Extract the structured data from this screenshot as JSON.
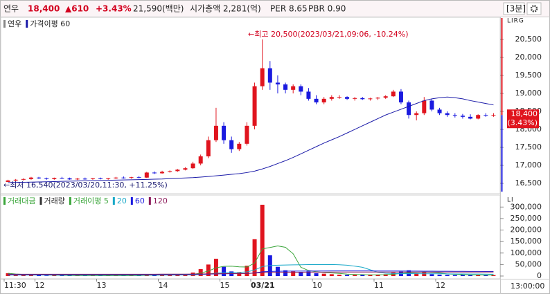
{
  "header": {
    "name": "연우",
    "price": "18,400",
    "change": "▲610",
    "change_rate": "+3.43%",
    "trade_value": "21,590(백만)",
    "market_cap": "시가총액 2,281(억)",
    "per": "PER 8.65",
    "pbr": "PBR 0.90",
    "interval": "[3분]"
  },
  "chart_data": [
    {
      "type": "candlestick",
      "axis_tag": "LIRG",
      "categories": [
        "11:30",
        null,
        null,
        null,
        "12",
        null,
        null,
        null,
        null,
        null,
        null,
        null,
        "13",
        null,
        null,
        null,
        null,
        null,
        null,
        null,
        "14",
        null,
        null,
        null,
        null,
        null,
        null,
        null,
        "15",
        null,
        null,
        null,
        "03/21",
        null,
        null,
        null,
        null,
        null,
        null,
        null,
        "10",
        null,
        null,
        null,
        null,
        null,
        null,
        null,
        "11",
        null,
        null,
        null,
        null,
        null,
        null,
        null,
        "12",
        null,
        null,
        null,
        null,
        null,
        null,
        null
      ],
      "series": [
        {
          "name": "연우",
          "color": "#888888",
          "up_color": "#e0141e",
          "down_color": "#1a1adf",
          "open": [
            16540,
            16580,
            16600,
            16620,
            16660,
            16640,
            16620,
            16650,
            16640,
            16610,
            16630,
            16620,
            16640,
            16620,
            16640,
            16660,
            16650,
            16670,
            16660,
            16800,
            16780,
            16820,
            16840,
            16880,
            16920,
            17050,
            17250,
            17700,
            18100,
            17700,
            17450,
            17600,
            18100,
            19200,
            19700,
            19300,
            19250,
            19100,
            19200,
            19050,
            18850,
            18750,
            18850,
            18900,
            18900,
            18850,
            18870,
            18840,
            18860,
            18880,
            18920,
            19050,
            18750,
            18400,
            18450,
            18800,
            18550,
            18450,
            18400,
            18380,
            18350,
            18300,
            18400,
            18380
          ],
          "high": [
            16600,
            16620,
            16640,
            16680,
            16680,
            16660,
            16660,
            16680,
            16660,
            16650,
            16660,
            16650,
            16660,
            16650,
            16680,
            16690,
            16680,
            16700,
            16820,
            16830,
            16850,
            16860,
            16900,
            16950,
            17100,
            17300,
            17800,
            18600,
            18200,
            17800,
            17650,
            18200,
            19300,
            20500,
            19900,
            19500,
            19300,
            19250,
            19250,
            19150,
            18950,
            18900,
            18950,
            18950,
            18920,
            18900,
            18900,
            18880,
            18900,
            18950,
            19100,
            19120,
            18800,
            18500,
            18900,
            18850,
            18600,
            18500,
            18450,
            18430,
            18420,
            18420,
            18450,
            18450
          ],
          "low": [
            16540,
            16560,
            16580,
            16600,
            16620,
            16600,
            16600,
            16620,
            16600,
            16590,
            16600,
            16600,
            16610,
            16600,
            16620,
            16630,
            16630,
            16640,
            16650,
            16760,
            16770,
            16800,
            16820,
            16860,
            16900,
            17000,
            17200,
            17650,
            17600,
            17350,
            17400,
            17550,
            18000,
            19100,
            19100,
            19000,
            19000,
            19000,
            18950,
            18800,
            18700,
            18700,
            18800,
            18850,
            18820,
            18800,
            18820,
            18800,
            18820,
            18850,
            18900,
            18700,
            18300,
            18250,
            18400,
            18500,
            18400,
            18350,
            18330,
            18300,
            18280,
            18280,
            18350,
            18350
          ],
          "close": [
            16580,
            16600,
            16620,
            16660,
            16640,
            16620,
            16650,
            16640,
            16610,
            16630,
            16620,
            16640,
            16620,
            16640,
            16660,
            16650,
            16670,
            16660,
            16800,
            16780,
            16820,
            16840,
            16880,
            16920,
            17050,
            17250,
            17700,
            18100,
            17700,
            17450,
            17600,
            18100,
            19200,
            19700,
            19300,
            19250,
            19100,
            19200,
            19050,
            18850,
            18750,
            18850,
            18900,
            18900,
            18850,
            18870,
            18840,
            18860,
            18880,
            18920,
            19050,
            18750,
            18400,
            18450,
            18800,
            18550,
            18450,
            18400,
            18380,
            18350,
            18300,
            18400,
            18380,
            18400
          ]
        },
        {
          "name": "가격이평 60",
          "color": "#1a1aa8",
          "values": [
            16520,
            16525,
            16530,
            16535,
            16540,
            16545,
            16550,
            16555,
            16560,
            16565,
            16570,
            16575,
            16580,
            16585,
            16590,
            16595,
            16600,
            16605,
            16610,
            16615,
            16620,
            16630,
            16640,
            16650,
            16660,
            16675,
            16690,
            16710,
            16730,
            16750,
            16770,
            16800,
            16840,
            16900,
            16970,
            17050,
            17130,
            17220,
            17320,
            17420,
            17520,
            17620,
            17710,
            17800,
            17900,
            18000,
            18100,
            18200,
            18300,
            18400,
            18480,
            18560,
            18640,
            18720,
            18800,
            18850,
            18880,
            18900,
            18880,
            18850,
            18800,
            18760,
            18720,
            18680
          ]
        }
      ],
      "ylim": [
        16270,
        21020
      ],
      "yticks": [
        {
          "value": 16500,
          "label": "16,500"
        },
        {
          "value": 17000,
          "label": "17,000"
        },
        {
          "value": 17500,
          "label": "17,500"
        },
        {
          "value": 18000,
          "label": "18,000"
        },
        {
          "value": 18500,
          "label": "18,500"
        },
        {
          "value": 19000,
          "label": "19,000"
        },
        {
          "value": 19500,
          "label": "19,500"
        },
        {
          "value": 20000,
          "label": "20,000"
        },
        {
          "value": 20500,
          "label": "20,500"
        }
      ],
      "last_price": {
        "value": 18400,
        "label": "18,400"
      },
      "last_change": "(3.43%)",
      "annotations": [
        {
          "text": "←최고 20,500(2023/03/21,09:06, -10.24%)",
          "color": "#d2001e"
        },
        {
          "text": "←최저 16,540(2023/03/20,11:30, +11.25%)",
          "color": "#1a1a70"
        }
      ]
    },
    {
      "type": "bar",
      "axis_tag": "LI",
      "legend_label": "거래대금",
      "legend_color": "#3aa53a",
      "x_end_label": "13:00:00",
      "series": [
        {
          "name": "거래량",
          "kind": "bar",
          "color": "#333333",
          "values": [
            12000,
            5000,
            4000,
            6000,
            3000,
            2000,
            3000,
            2500,
            2000,
            2500,
            2000,
            1500,
            2000,
            1500,
            3000,
            2000,
            2500,
            2000,
            8000,
            4000,
            5000,
            4000,
            6000,
            8000,
            15000,
            30000,
            50000,
            75000,
            40000,
            20000,
            15000,
            45000,
            160000,
            310000,
            90000,
            40000,
            25000,
            20000,
            15000,
            20000,
            12000,
            10000,
            8000,
            6000,
            5000,
            5000,
            6000,
            5000,
            6000,
            8000,
            15000,
            20000,
            25000,
            12000,
            15000,
            8000,
            6000,
            5000,
            4000,
            5000,
            4000,
            5000,
            3000,
            4000
          ]
        },
        {
          "name": "거래이평 5",
          "kind": "line",
          "color": "#3aa53a",
          "values": [
            12000,
            8500,
            7000,
            6750,
            6000,
            4000,
            3600,
            3300,
            2600,
            2400,
            2400,
            2100,
            2100,
            1900,
            2100,
            2000,
            2200,
            2200,
            3500,
            3900,
            4300,
            4700,
            5400,
            5400,
            7600,
            12600,
            21800,
            35600,
            42000,
            43000,
            40000,
            39000,
            56000,
            118000,
            124000,
            131000,
            125000,
            97000,
            38000,
            24000,
            18400,
            15400,
            13000,
            11200,
            8200,
            6800,
            6000,
            5400,
            5400,
            6000,
            8000,
            10800,
            14800,
            16000,
            17400,
            16000,
            13200,
            9200,
            7600,
            5600,
            4800,
            4600,
            4200,
            4200
          ]
        },
        {
          "name": "20",
          "kind": "line",
          "color": "#18a8c8",
          "values": [
            4000,
            4000,
            4000,
            4000,
            4000,
            4000,
            4000,
            4000,
            4000,
            4000,
            4000,
            4000,
            4000,
            4000,
            4000,
            4000,
            4000,
            4000,
            4000,
            4000,
            4000,
            4000,
            4200,
            4500,
            5000,
            6400,
            8800,
            12400,
            14300,
            15200,
            15900,
            18000,
            25800,
            41200,
            45400,
            47000,
            47800,
            48500,
            48900,
            49500,
            49700,
            49800,
            49900,
            49000,
            47000,
            43000,
            38000,
            27000,
            16000,
            12000,
            11000,
            10000,
            10500,
            10000,
            9900,
            9800,
            9700,
            9500,
            9200,
            9000,
            8800,
            8500,
            8300,
            8100
          ]
        },
        {
          "name": "60",
          "kind": "line",
          "color": "#1a1adf",
          "values": [
            6000,
            6000,
            6000,
            6000,
            6000,
            6000,
            6000,
            6000,
            6000,
            6000,
            6000,
            6000,
            6000,
            6000,
            6000,
            6000,
            6000,
            6000,
            6100,
            6200,
            6300,
            6400,
            6500,
            6700,
            7000,
            7500,
            8200,
            9200,
            9800,
            10100,
            10300,
            11000,
            13500,
            18500,
            20000,
            20600,
            21000,
            21300,
            21500,
            21800,
            21900,
            22000,
            22100,
            22100,
            22100,
            22100,
            22100,
            22100,
            22000,
            21900,
            21800,
            21700,
            21600,
            21400,
            21200,
            21000,
            20800,
            20600,
            20400,
            20200,
            20000,
            19800,
            19600,
            19400
          ]
        },
        {
          "name": "120",
          "kind": "line",
          "color": "#8b1a5a",
          "values": [
            8000,
            8000,
            8000,
            8000,
            8000,
            8000,
            8000,
            8000,
            8000,
            8000,
            8000,
            8000,
            8000,
            8000,
            8000,
            8000,
            8000,
            8000,
            8050,
            8100,
            8150,
            8200,
            8300,
            8400,
            8600,
            8900,
            9400,
            10000,
            10300,
            10500,
            10700,
            11100,
            12400,
            14900,
            15600,
            16000,
            16300,
            16500,
            16700,
            16900,
            17000,
            17100,
            17200,
            17300,
            17300,
            17300,
            17300,
            17300,
            17300,
            17300,
            17300,
            17300,
            17300,
            17300,
            17300,
            17300,
            17300,
            17300,
            17300,
            17300,
            17300,
            17300,
            17300,
            17300
          ]
        }
      ],
      "ylim": [
        -6000,
        337000
      ],
      "yticks": [
        0,
        {
          "value": 50000,
          "label": "50,000"
        },
        {
          "value": 100000,
          "label": "100,000"
        },
        {
          "value": 150000,
          "label": "150,000"
        },
        {
          "value": 200000,
          "label": "200,000"
        },
        {
          "value": 250000,
          "label": "250,000"
        },
        {
          "value": 300000,
          "label": "300,000"
        }
      ]
    }
  ]
}
